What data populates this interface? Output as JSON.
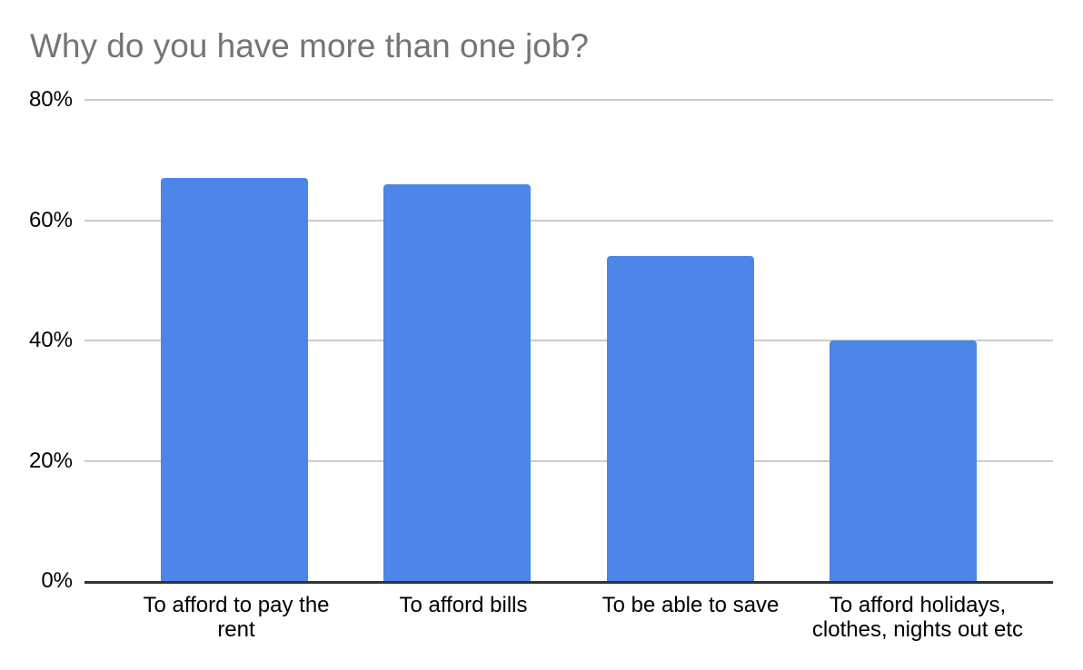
{
  "page": {
    "background_color": "#ffffff"
  },
  "chart_data": {
    "type": "bar",
    "title": "Why do you have more than one job?",
    "categories": [
      "To afford to pay the rent",
      "To afford bills",
      "To be able to save",
      "To afford holidays, clothes, nights out etc"
    ],
    "values": [
      67,
      66,
      54,
      40
    ],
    "xlabel": "",
    "ylabel": "",
    "ylim": [
      0,
      80
    ],
    "y_tick_labels_top_to_bottom": [
      "80%",
      "60%",
      "40%",
      "20%",
      "0%"
    ],
    "y_tick_format": "percent",
    "grid": true,
    "legend_position": "none",
    "colors": {
      "bar": "#4d85e8",
      "title_text": "#757575",
      "tick_label_text": "#000000",
      "gridline": "#cccccc",
      "axis_line": "#333333"
    }
  }
}
